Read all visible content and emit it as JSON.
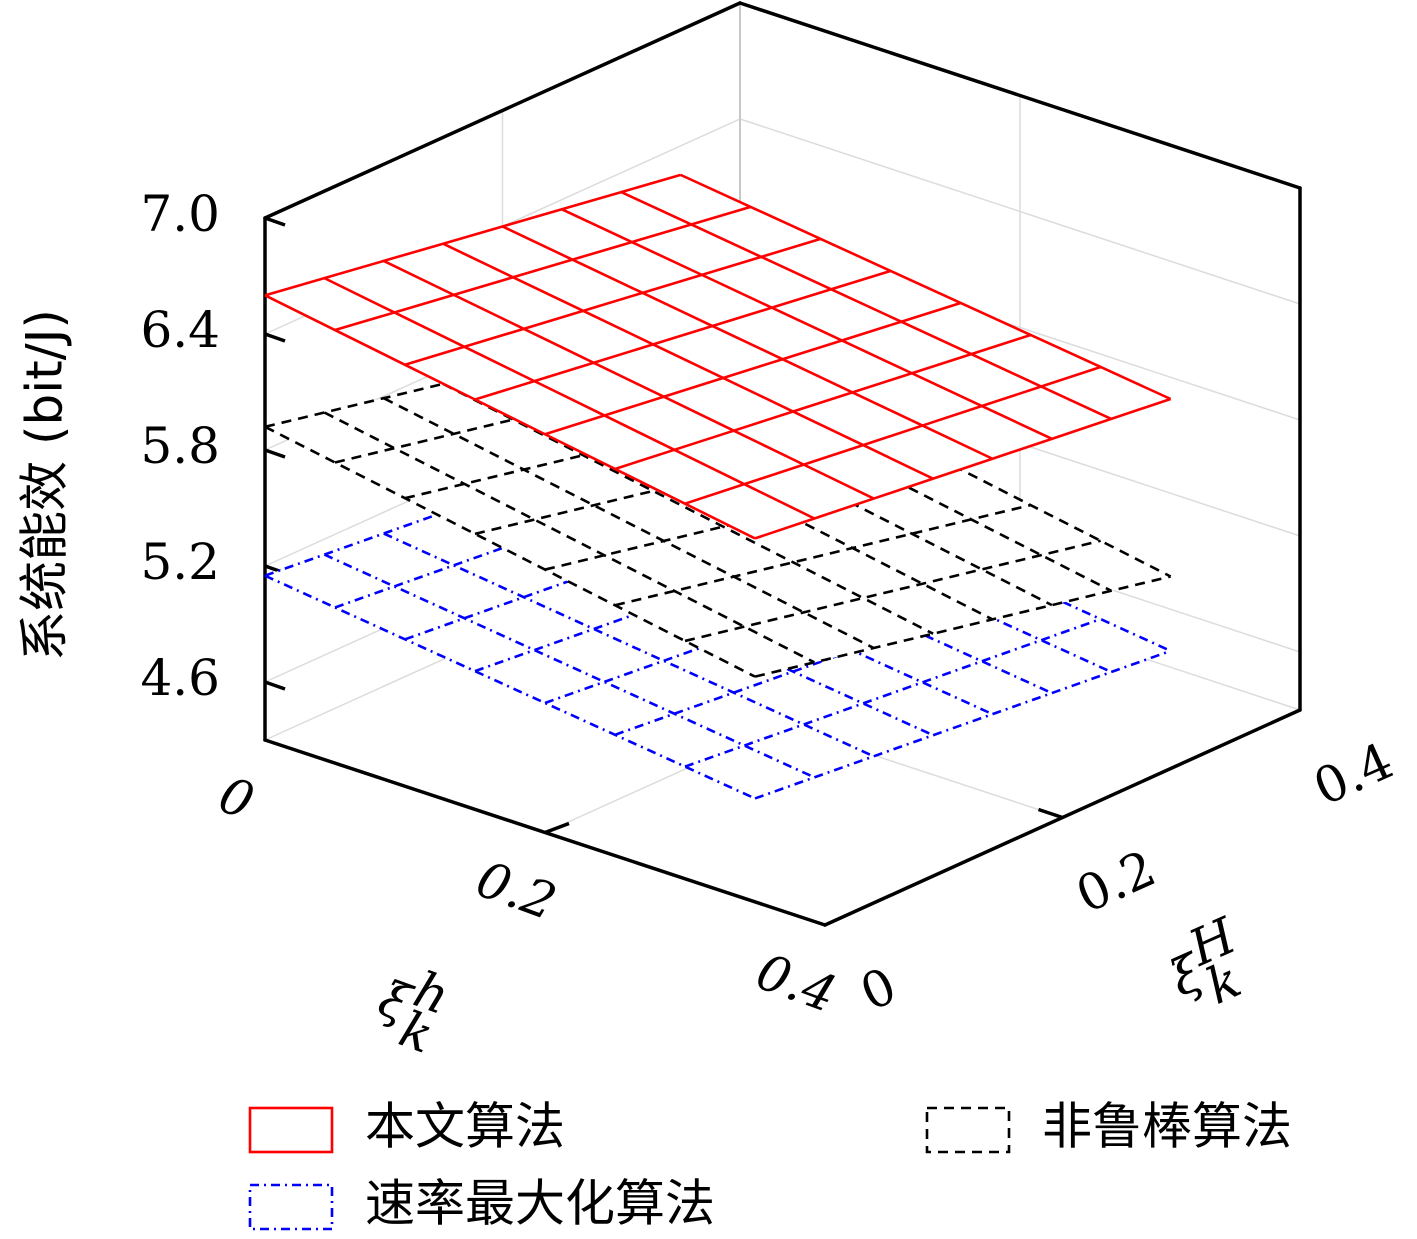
{
  "chart_data": {
    "type": "surface3d",
    "zlabel": "系统能效 (bit/J)",
    "xlabel": {
      "base": "ξ",
      "superscript": "h",
      "subscript": "k"
    },
    "ylabel": {
      "base": "ξ",
      "superscript": "H",
      "subscript": "k"
    },
    "x": [
      0,
      0.05,
      0.1,
      0.15,
      0.2,
      0.25,
      0.3,
      0.35
    ],
    "y": [
      0,
      0.05,
      0.1,
      0.15,
      0.2,
      0.25,
      0.3,
      0.35
    ],
    "xlim": [
      0,
      0.4
    ],
    "ylim": [
      0,
      0.4
    ],
    "zlim": [
      4.3,
      7.0
    ],
    "xticks": [
      0,
      0.2,
      0.4
    ],
    "yticks": [
      0,
      0.2,
      0.4
    ],
    "zticks": [
      4.6,
      5.2,
      5.8,
      6.4,
      {
        "value": 7,
        "label": "7.0"
      }
    ],
    "grid": true,
    "series": [
      {
        "name": "本文算法",
        "color": "#ff0000",
        "style": "solid",
        "values": [
          [
            6.6,
            6.55,
            6.5,
            6.45,
            6.4,
            6.35,
            6.3,
            6.25
          ],
          [
            6.54,
            6.492,
            6.444,
            6.396,
            6.348,
            6.3,
            6.252,
            6.204
          ],
          [
            6.48,
            6.434,
            6.388,
            6.342,
            6.296,
            6.25,
            6.204,
            6.158
          ],
          [
            6.42,
            6.376,
            6.332,
            6.288,
            6.244,
            6.2,
            6.156,
            6.112
          ],
          [
            6.36,
            6.318,
            6.276,
            6.234,
            6.192,
            6.15,
            6.108,
            6.066
          ],
          [
            6.3,
            6.26,
            6.22,
            6.18,
            6.14,
            6.1,
            6.06,
            6.02
          ],
          [
            6.24,
            6.202,
            6.164,
            6.126,
            6.088,
            6.05,
            6.012,
            5.974
          ],
          [
            6.18,
            6.144,
            6.108,
            6.072,
            6.036,
            6.0,
            5.964,
            5.928
          ]
        ]
      },
      {
        "name": "速率最大化算法",
        "color": "#0000ff",
        "style": "dashdot",
        "values": [
          [
            5.15,
            5.12,
            5.09,
            5.06,
            5.03,
            5.0,
            4.97,
            4.94
          ],
          [
            5.105,
            5.075,
            5.045,
            5.015,
            4.985,
            4.955,
            4.925,
            4.895
          ],
          [
            5.06,
            5.03,
            5.0,
            4.97,
            4.94,
            4.91,
            4.88,
            4.85
          ],
          [
            5.015,
            4.985,
            4.955,
            4.925,
            4.895,
            4.865,
            4.835,
            4.805
          ],
          [
            4.97,
            4.94,
            4.91,
            4.88,
            4.85,
            4.82,
            4.79,
            4.76
          ],
          [
            4.925,
            4.895,
            4.865,
            4.835,
            4.805,
            4.775,
            4.745,
            4.715
          ],
          [
            4.88,
            4.85,
            4.82,
            4.79,
            4.76,
            4.73,
            4.7,
            4.67
          ],
          [
            4.835,
            4.805,
            4.775,
            4.745,
            4.715,
            4.685,
            4.655,
            4.625
          ]
        ]
      },
      {
        "name": "非鲁棒算法",
        "color": "#000000",
        "style": "dashed",
        "values": [
          [
            5.92,
            5.855,
            5.79,
            5.725,
            5.66,
            5.595,
            5.53,
            5.465
          ],
          [
            5.855,
            5.79,
            5.725,
            5.66,
            5.595,
            5.53,
            5.465,
            5.4
          ],
          [
            5.79,
            5.725,
            5.66,
            5.595,
            5.53,
            5.465,
            5.4,
            5.335
          ],
          [
            5.725,
            5.66,
            5.595,
            5.53,
            5.465,
            5.4,
            5.335,
            5.27
          ],
          [
            5.66,
            5.595,
            5.53,
            5.465,
            5.4,
            5.335,
            5.27,
            5.205
          ],
          [
            5.595,
            5.53,
            5.465,
            5.4,
            5.335,
            5.27,
            5.205,
            5.14
          ],
          [
            5.53,
            5.465,
            5.4,
            5.335,
            5.27,
            5.205,
            5.14,
            5.075
          ],
          [
            5.465,
            5.4,
            5.335,
            5.27,
            5.205,
            5.14,
            5.075,
            5.01
          ]
        ]
      }
    ]
  }
}
